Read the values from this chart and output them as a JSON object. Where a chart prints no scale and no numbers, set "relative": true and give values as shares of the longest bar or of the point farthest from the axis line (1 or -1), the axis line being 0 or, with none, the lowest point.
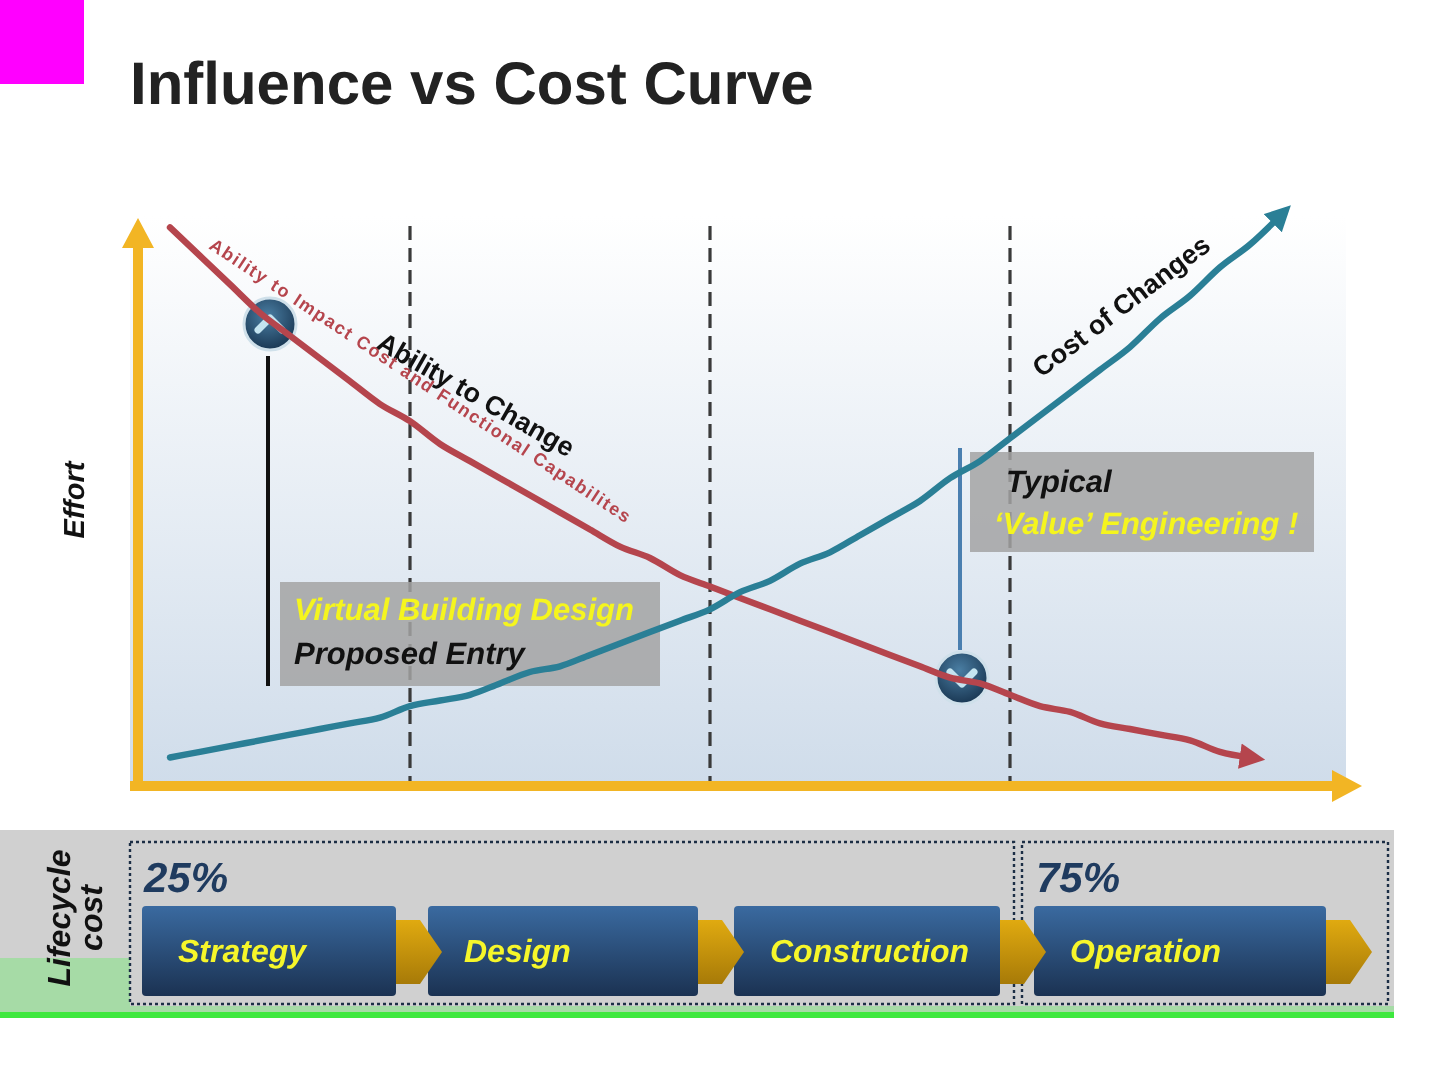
{
  "chart_data": [
    {
      "type": "line",
      "title": "Influence vs Cost Curve",
      "ylabel": "Effort",
      "relative": true,
      "grid": "x",
      "categories": [
        null,
        null,
        null,
        null,
        null,
        null,
        null,
        null,
        null,
        null,
        null,
        null,
        null,
        null,
        null,
        null,
        null,
        null,
        null,
        null,
        null,
        null,
        null,
        null,
        null,
        null,
        null,
        null,
        null,
        null,
        null,
        null,
        null,
        null,
        null,
        null,
        null,
        null
      ],
      "series": [
        {
          "name": "Ability to Change",
          "color": "#b5454d",
          "values": [
            0.98,
            0.93,
            0.88,
            0.83,
            0.79,
            0.75,
            0.71,
            0.67,
            0.64,
            0.6,
            0.57,
            0.54,
            0.51,
            0.48,
            0.45,
            0.42,
            0.4,
            0.37,
            0.35,
            0.33,
            0.31,
            0.29,
            0.27,
            0.25,
            0.23,
            0.21,
            0.19,
            0.18,
            0.16,
            0.14,
            0.13,
            0.11,
            0.1,
            0.09,
            0.08,
            0.06,
            0.05,
            null
          ]
        },
        {
          "name": "Cost of Changes",
          "color": "#2a7f96",
          "values": [
            0.05,
            0.06,
            0.07,
            0.08,
            0.09,
            0.1,
            0.11,
            0.12,
            0.14,
            0.15,
            0.16,
            0.18,
            0.2,
            0.21,
            0.23,
            0.25,
            0.27,
            0.29,
            0.31,
            0.34,
            0.36,
            0.39,
            0.41,
            0.44,
            0.47,
            0.5,
            0.54,
            0.57,
            0.61,
            0.65,
            0.69,
            0.73,
            0.77,
            0.82,
            0.86,
            0.91,
            0.95,
            1
          ]
        }
      ],
      "annotations": [
        "Ability to Impact Cost and Functional Capabilites",
        "Virtual Building Design",
        "Proposed Entry",
        "Typical",
        "‘Value’ Engineering !"
      ]
    },
    {
      "type": "other",
      "ylabel": "Lifecycle cost",
      "categories": [
        "Strategy",
        "Design",
        "Construction",
        "Operation"
      ],
      "annotations": [
        "25%",
        "75%"
      ]
    }
  ]
}
